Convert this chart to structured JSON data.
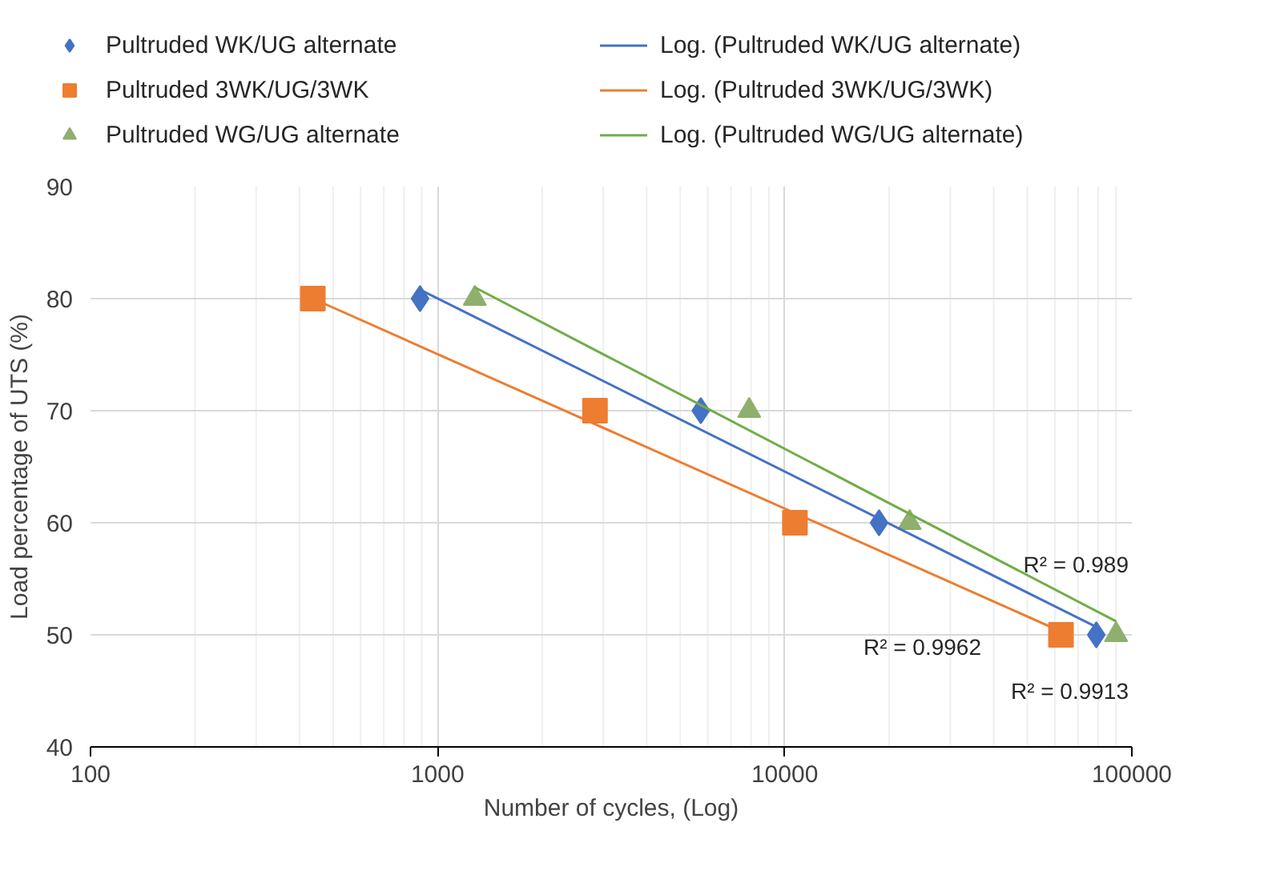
{
  "chart_data": {
    "type": "scatter",
    "xlabel": "Number of cycles, (Log)",
    "ylabel": "Load percentage of UTS (%)",
    "log": "x",
    "xlim": [
      100,
      100000
    ],
    "xticks": [
      100,
      1000,
      10000,
      100000
    ],
    "ylim": [
      40,
      90
    ],
    "yticks": [
      40,
      50,
      60,
      70,
      80,
      90
    ],
    "grid": true,
    "legend": "top",
    "series": [
      {
        "name": "Pultruded WK/UG alternate",
        "marker": "diamond",
        "color": "#4472c4",
        "x": [
          890,
          5730,
          18700,
          79000
        ],
        "values": [
          80,
          70,
          60,
          50
        ]
      },
      {
        "name": "Pultruded 3WK/UG/3WK",
        "marker": "square",
        "color": "#ed7d31",
        "x": [
          437,
          2840,
          10700,
          62500
        ],
        "values": [
          80,
          70,
          60,
          50
        ]
      },
      {
        "name": "Pultruded WG/UG alternate",
        "marker": "triangle",
        "color": "#8faf6e",
        "x": [
          1280,
          7900,
          22900,
          90100
        ],
        "values": [
          80,
          70,
          60,
          50
        ]
      },
      {
        "name": "Log. (Pultruded WK/UG alternate)",
        "type": "line",
        "color": "#4472c4",
        "x": [
          890,
          79000
        ],
        "values": [
          80.8,
          50.7
        ]
      },
      {
        "name": "Log. (Pultruded 3WK/UG/3WK)",
        "type": "line",
        "color": "#ed7d31",
        "x": [
          437,
          62500
        ],
        "values": [
          80,
          50.3
        ]
      },
      {
        "name": "Log. (Pultruded WG/UG alternate)",
        "type": "line",
        "color": "#70ad47",
        "x": [
          1280,
          90100
        ],
        "values": [
          81,
          51.2
        ]
      }
    ],
    "annotations": [
      "R² = 0.989",
      "R² = 0.9962",
      "R² = 0.9913"
    ]
  }
}
